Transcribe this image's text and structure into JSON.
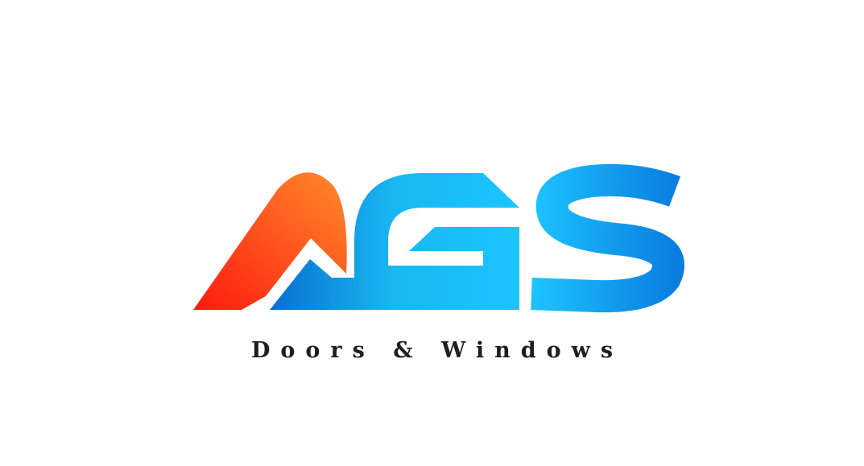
{
  "tagline": "Doors & Windows"
}
